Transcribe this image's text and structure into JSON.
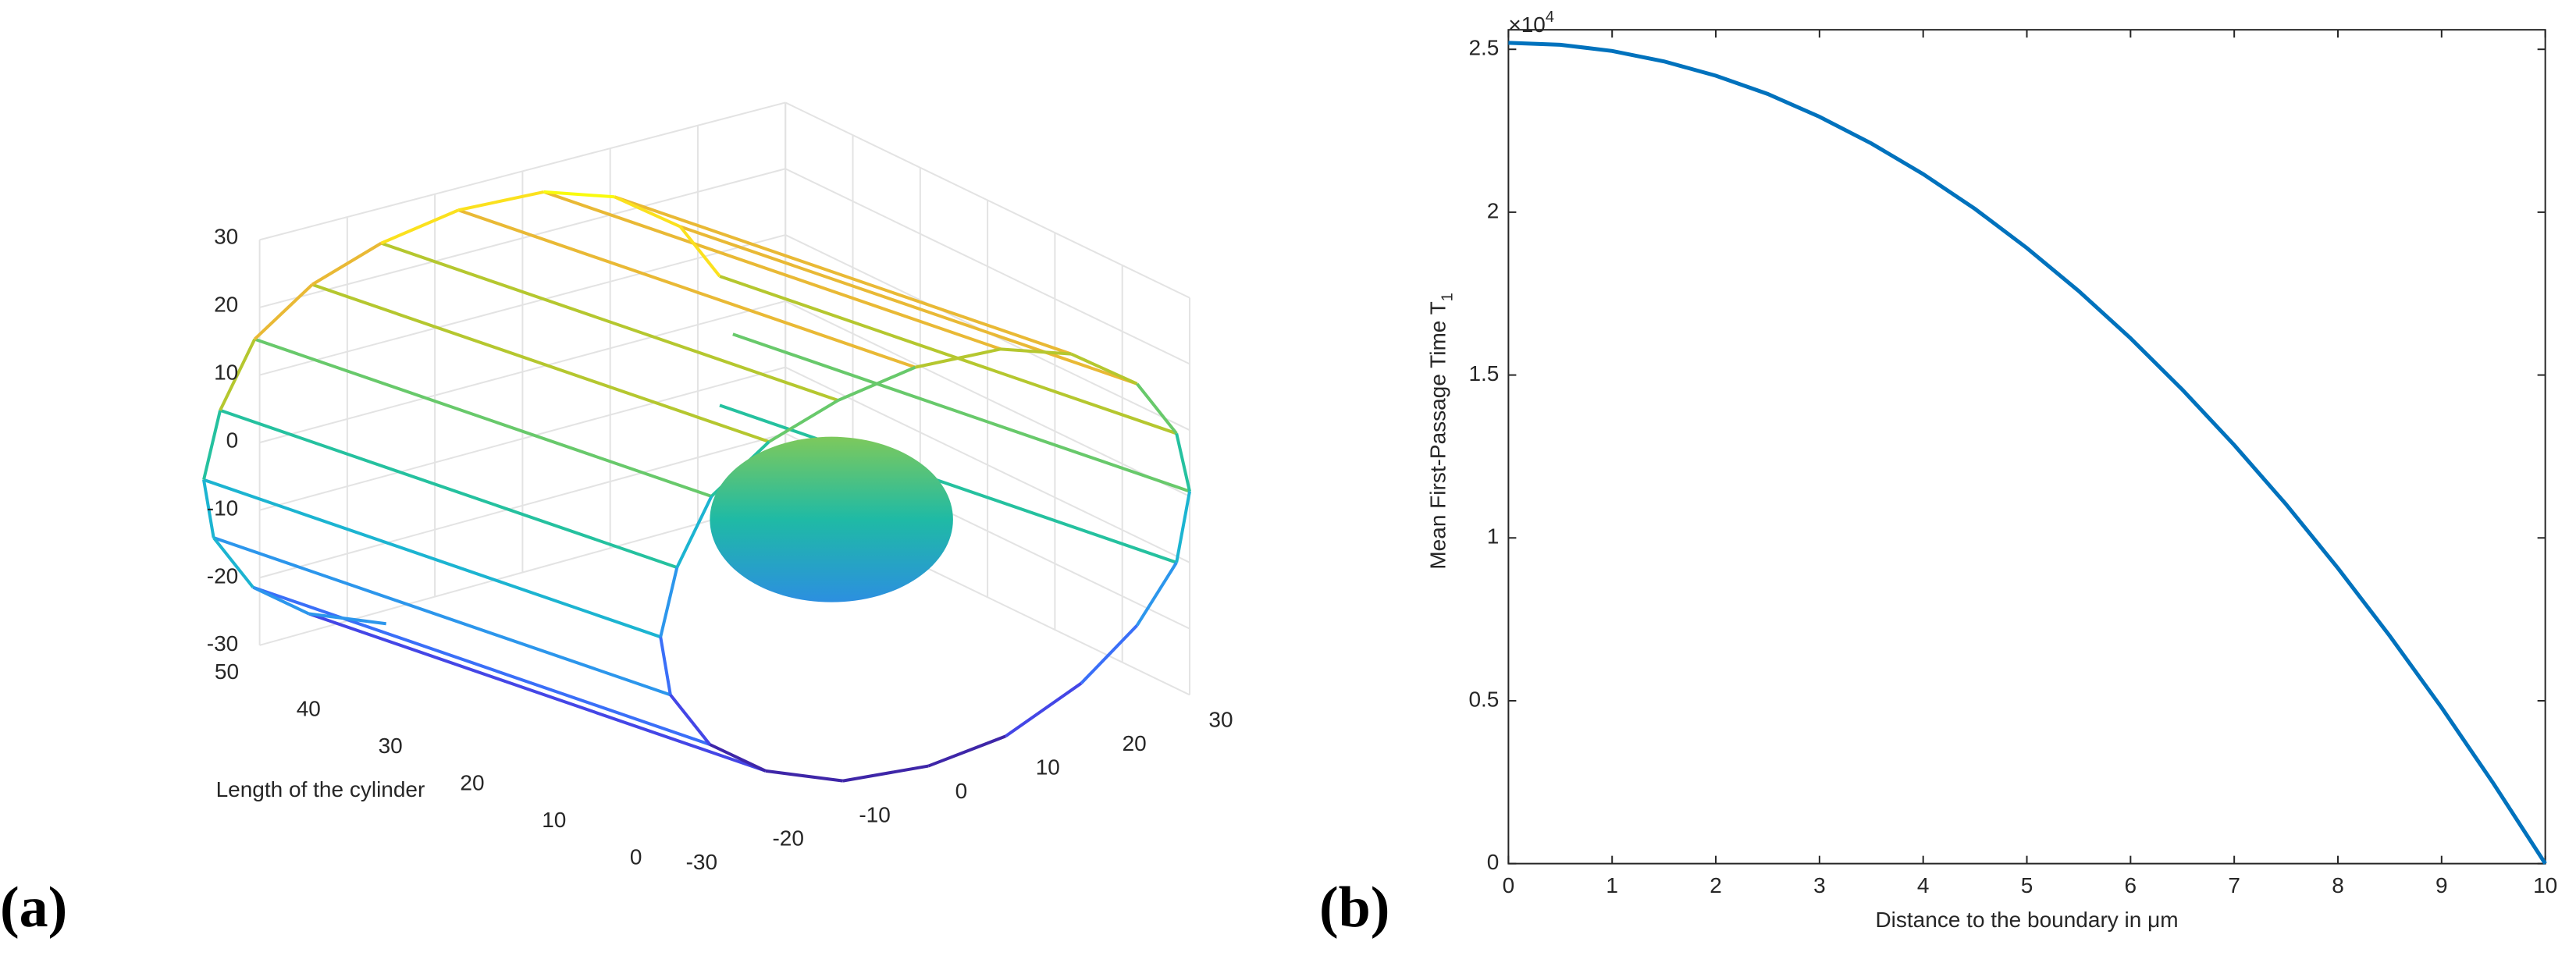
{
  "chart_data": [
    {
      "type": "surface3d",
      "panel": "(a)",
      "ylabel": "Length of the cylinder",
      "xlim": [
        -30,
        30
      ],
      "xticks": [
        -30,
        -20,
        -10,
        0,
        10,
        20,
        30
      ],
      "ylim": [
        0,
        50
      ],
      "yticks": [
        0,
        10,
        20,
        30,
        40,
        50
      ],
      "zlim": [
        -30,
        30
      ],
      "zticks": [
        -30,
        -20,
        -10,
        0,
        10,
        20,
        30
      ]
    },
    {
      "type": "line",
      "panel": "(b)",
      "xlabel": "Distance to the boundary in μm",
      "ylabel": "Mean First-Passage Time T",
      "ylabel_sub": "1",
      "y_multiplier": "×10",
      "y_multiplier_exp": "4",
      "x": [
        0,
        0.5,
        1,
        1.5,
        2,
        2.5,
        3,
        3.5,
        4,
        4.5,
        5,
        5.5,
        6,
        6.5,
        7,
        7.5,
        8,
        8.5,
        9,
        9.5,
        10
      ],
      "series": [
        {
          "color": "#0072bd",
          "values": [
            2.52,
            2.514,
            2.495,
            2.463,
            2.419,
            2.363,
            2.293,
            2.211,
            2.117,
            2.01,
            1.89,
            1.758,
            1.613,
            1.455,
            1.285,
            1.103,
            0.907,
            0.699,
            0.479,
            0.246,
            0
          ]
        }
      ],
      "xlim": [
        0,
        10
      ],
      "xticks": [
        0,
        1,
        2,
        3,
        4,
        5,
        6,
        7,
        8,
        9,
        10
      ],
      "ylim": [
        0,
        2.56
      ],
      "yticks": [
        0,
        0.5,
        1,
        1.5,
        2,
        2.5
      ]
    }
  ]
}
